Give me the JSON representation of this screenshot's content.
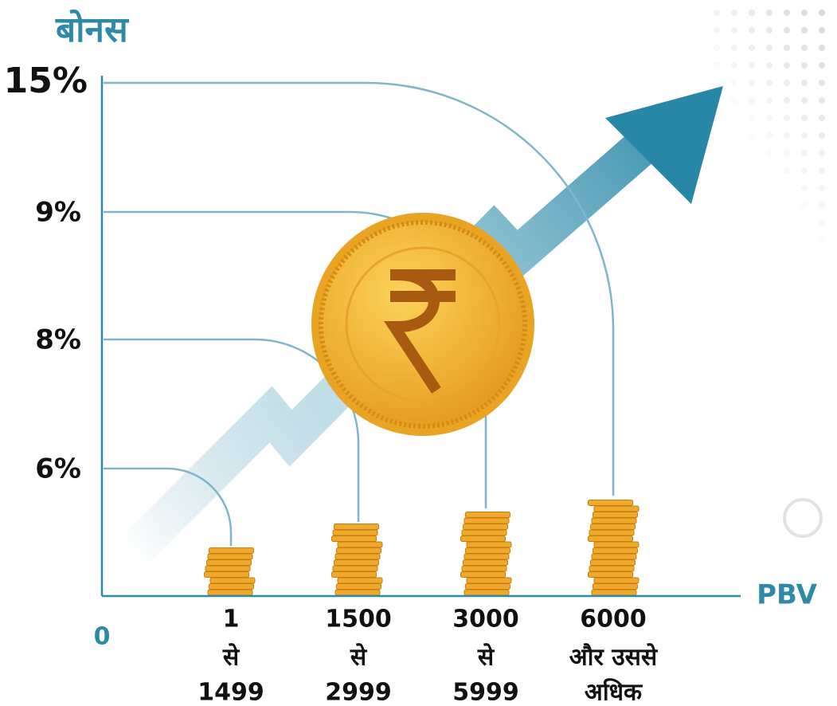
{
  "title": "बोनस",
  "y_axis_labels": [
    "15%",
    "9%",
    "8%",
    "6%"
  ],
  "origin_label": "0",
  "x_axis_label": "PBV",
  "tiers": [
    {
      "lines": [
        "1",
        "से",
        "1499"
      ]
    },
    {
      "lines": [
        "1500",
        "से",
        "2999"
      ]
    },
    {
      "lines": [
        "3000",
        "से",
        "5999"
      ]
    },
    {
      "lines": [
        "6000",
        "और उससे",
        "अधिक"
      ]
    }
  ]
}
